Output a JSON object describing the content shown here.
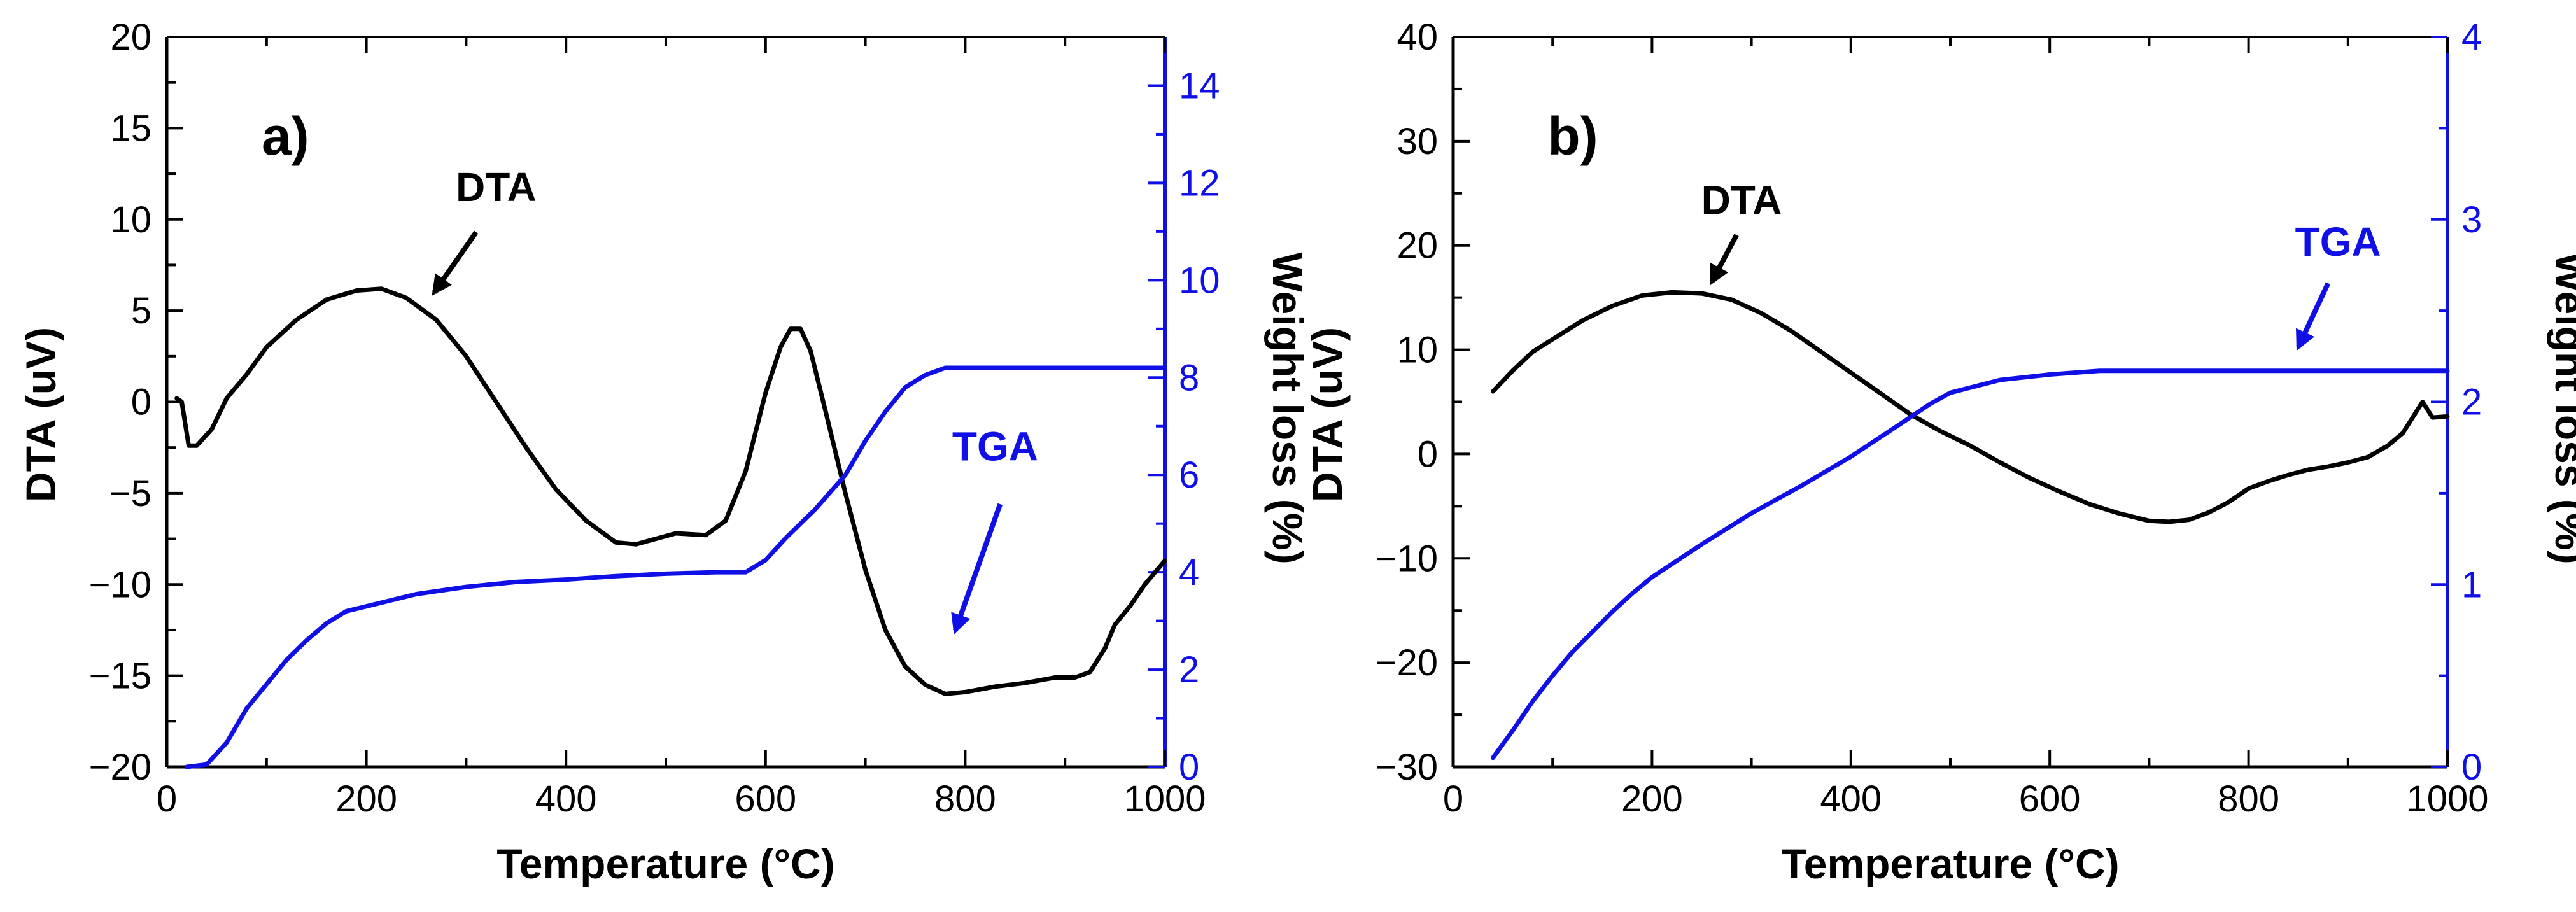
{
  "chart_data": [
    {
      "type": "line",
      "panel_label": "a)",
      "xlabel": "Temperature (°C)",
      "ylabel": "DTA (uV)",
      "y2label": "Weight loss (%)",
      "xlim": [
        0,
        1000
      ],
      "ylim": [
        -20,
        20
      ],
      "y2lim": [
        0,
        15
      ],
      "xticks": [
        0,
        200,
        400,
        600,
        800,
        1000
      ],
      "xtick_labels": [
        "0",
        "200",
        "400",
        "600",
        "800",
        "1000"
      ],
      "yticks": [
        -20,
        -15,
        -10,
        -5,
        0,
        5,
        10,
        15,
        20
      ],
      "ytick_labels": [
        "−20",
        "−15",
        "−10",
        "−5",
        "0",
        "5",
        "10",
        "15",
        "20"
      ],
      "y2ticks": [
        0,
        2,
        4,
        6,
        8,
        10,
        12,
        14
      ],
      "y2tick_labels": [
        "0",
        "2",
        "4",
        "6",
        "8",
        "10",
        "12",
        "14"
      ],
      "grid": false,
      "series": [
        {
          "name": "DTA",
          "axis": "left",
          "color": "#000000",
          "x": [
            10,
            15,
            22,
            30,
            45,
            60,
            80,
            100,
            130,
            160,
            190,
            215,
            240,
            270,
            300,
            330,
            360,
            390,
            420,
            450,
            470,
            490,
            510,
            540,
            560,
            580,
            600,
            615,
            625,
            635,
            645,
            660,
            680,
            700,
            720,
            740,
            760,
            780,
            800,
            830,
            860,
            890,
            910,
            925,
            940,
            950,
            965,
            980,
            1000
          ],
          "y": [
            0.2,
            0.0,
            -2.4,
            -2.4,
            -1.5,
            0.2,
            1.5,
            3.0,
            4.5,
            5.6,
            6.1,
            6.2,
            5.7,
            4.5,
            2.5,
            0.0,
            -2.5,
            -4.8,
            -6.5,
            -7.7,
            -7.8,
            -7.5,
            -7.2,
            -7.3,
            -6.5,
            -3.8,
            0.5,
            3.0,
            4.0,
            4.0,
            2.8,
            -0.5,
            -5.0,
            -9.2,
            -12.5,
            -14.5,
            -15.5,
            -16.0,
            -15.9,
            -15.6,
            -15.4,
            -15.1,
            -15.1,
            -14.8,
            -13.5,
            -12.2,
            -11.2,
            -10.0,
            -8.7
          ]
        },
        {
          "name": "TGA",
          "axis": "right",
          "color": "#1010e6",
          "x": [
            20,
            40,
            60,
            80,
            100,
            120,
            140,
            160,
            180,
            200,
            250,
            300,
            350,
            400,
            450,
            500,
            550,
            580,
            600,
            620,
            650,
            680,
            700,
            720,
            740,
            760,
            780,
            800,
            850,
            900,
            950,
            1000
          ],
          "y": [
            0.0,
            0.05,
            0.5,
            1.2,
            1.7,
            2.2,
            2.6,
            2.95,
            3.2,
            3.3,
            3.55,
            3.7,
            3.8,
            3.85,
            3.92,
            3.97,
            4.0,
            4.0,
            4.25,
            4.7,
            5.3,
            6.0,
            6.7,
            7.3,
            7.8,
            8.05,
            8.2,
            8.2,
            8.2,
            8.2,
            8.2,
            8.2
          ]
        }
      ],
      "annotations": [
        {
          "text": "DTA",
          "color": "#000000",
          "x": 330,
          "y": 11,
          "arrow_from": [
            310,
            9.3
          ],
          "arrow_to": [
            268,
            6.0
          ]
        },
        {
          "text": "TGA",
          "color": "#1010e6",
          "x": 830,
          "y": 6.3,
          "arrow_from": [
            835,
            5.4
          ],
          "arrow_to": [
            790,
            2.8
          ]
        }
      ]
    },
    {
      "type": "line",
      "panel_label": "b)",
      "xlabel": "Temperature (°C)",
      "ylabel": "DTA (uV)",
      "y2label": "Weight loss (%)",
      "xlim": [
        0,
        1000
      ],
      "ylim": [
        -30,
        40
      ],
      "y2lim": [
        0,
        4
      ],
      "xticks": [
        0,
        200,
        400,
        600,
        800,
        1000
      ],
      "xtick_labels": [
        "0",
        "200",
        "400",
        "600",
        "800",
        "1000"
      ],
      "yticks": [
        -30,
        -20,
        -10,
        0,
        10,
        20,
        30,
        40
      ],
      "ytick_labels": [
        "−30",
        "−20",
        "−10",
        "0",
        "10",
        "20",
        "30",
        "40"
      ],
      "y2ticks": [
        0,
        1,
        2,
        3,
        4
      ],
      "y2tick_labels": [
        "0",
        "1",
        "2",
        "3",
        "4"
      ],
      "grid": false,
      "series": [
        {
          "name": "DTA",
          "axis": "left",
          "color": "#000000",
          "x": [
            40,
            60,
            80,
            100,
            130,
            160,
            190,
            220,
            250,
            280,
            310,
            340,
            370,
            400,
            430,
            460,
            490,
            520,
            550,
            580,
            610,
            640,
            670,
            700,
            720,
            740,
            760,
            780,
            800,
            820,
            840,
            860,
            880,
            900,
            920,
            940,
            955,
            965,
            975,
            985,
            1000
          ],
          "y": [
            6.0,
            8.0,
            9.8,
            11.0,
            12.8,
            14.2,
            15.2,
            15.5,
            15.4,
            14.8,
            13.5,
            11.8,
            9.8,
            7.8,
            5.8,
            3.8,
            2.2,
            0.8,
            -0.8,
            -2.3,
            -3.6,
            -4.8,
            -5.7,
            -6.4,
            -6.5,
            -6.3,
            -5.6,
            -4.6,
            -3.3,
            -2.6,
            -2.0,
            -1.5,
            -1.2,
            -0.8,
            -0.3,
            0.8,
            2.0,
            3.5,
            5.0,
            3.5,
            3.6
          ]
        },
        {
          "name": "TGA",
          "axis": "right",
          "color": "#1010e6",
          "x": [
            40,
            60,
            80,
            100,
            120,
            140,
            160,
            180,
            200,
            250,
            300,
            350,
            400,
            450,
            480,
            500,
            550,
            600,
            650,
            700,
            750,
            800,
            850,
            900,
            950,
            1000
          ],
          "y": [
            0.05,
            0.2,
            0.36,
            0.5,
            0.63,
            0.74,
            0.85,
            0.95,
            1.04,
            1.22,
            1.39,
            1.54,
            1.7,
            1.88,
            1.99,
            2.05,
            2.12,
            2.15,
            2.17,
            2.17,
            2.17,
            2.17,
            2.17,
            2.17,
            2.17,
            2.17
          ]
        }
      ],
      "annotations": [
        {
          "text": "DTA",
          "color": "#000000",
          "x": 290,
          "y": 23,
          "arrow_from": [
            285,
            21
          ],
          "arrow_to": [
            260,
            16.5
          ]
        },
        {
          "text": "TGA",
          "color": "#1010e6",
          "x": 890,
          "y": 2.8,
          "arrow_from": [
            880,
            2.65
          ],
          "arrow_to": [
            850,
            2.3
          ]
        }
      ]
    }
  ]
}
